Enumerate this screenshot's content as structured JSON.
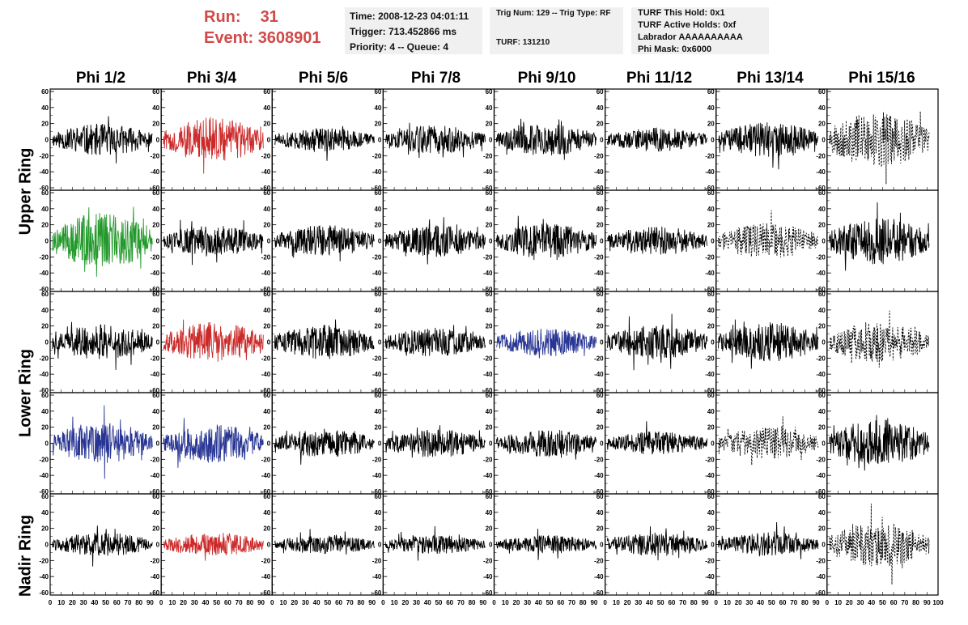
{
  "header": {
    "run_label": "Run:",
    "run_value": "31",
    "event_label": "Event:",
    "event_value": "3608901",
    "time": "Time: 2008-12-23 04:01:11",
    "trigger": "Trigger: 713.452866 ms",
    "priority": "Priority: 4 -- Queue: 4",
    "trig_num": "Trig Num: 129 -- Trig Type: RF",
    "turf": "TURF: 131210",
    "turf_hold": "TURF This Hold: 0x1",
    "turf_active": "TURF Active Holds: 0xf",
    "labrador": "Labrador AAAAAAAAAA",
    "phi_mask": "Phi Mask: 0x6000"
  },
  "columns": [
    "Phi 1/2",
    "Phi 3/4",
    "Phi 5/6",
    "Phi 7/8",
    "Phi 9/10",
    "Phi 11/12",
    "Phi 13/14",
    "Phi 15/16"
  ],
  "ring_labels": [
    "Upper Ring",
    "Lower Ring",
    "Nadir Ring"
  ],
  "colors": {
    "black": "#000000",
    "red": "#cc2a2a",
    "green": "#22992a",
    "blue": "#283593"
  },
  "chart_data": {
    "type": "line",
    "rows": 5,
    "cols": 8,
    "xlim": [
      0,
      100
    ],
    "ylim": [
      -60,
      60
    ],
    "y_ticks": [
      -60,
      -40,
      -20,
      0,
      20,
      40,
      60
    ],
    "x_ticks": [
      0,
      10,
      20,
      30,
      40,
      50,
      60,
      70,
      80,
      90,
      100
    ],
    "panel_styles": [
      [
        "black",
        "red",
        "black",
        "black",
        "black",
        "black",
        "black",
        "dotted"
      ],
      [
        "green",
        "black",
        "black",
        "black",
        "black",
        "black",
        "dotted",
        "black"
      ],
      [
        "black",
        "red",
        "black",
        "black",
        "blue",
        "black",
        "black",
        "dotted"
      ],
      [
        "blue",
        "blue",
        "black",
        "black",
        "black",
        "black",
        "dotted",
        "black"
      ],
      [
        "black",
        "red",
        "black",
        "black",
        "black",
        "black",
        "black",
        "dotted"
      ]
    ],
    "amplitude": [
      [
        20,
        28,
        15,
        18,
        20,
        15,
        22,
        35
      ],
      [
        35,
        20,
        20,
        20,
        22,
        18,
        22,
        30
      ],
      [
        22,
        25,
        22,
        18,
        18,
        22,
        25,
        25
      ],
      [
        25,
        25,
        18,
        18,
        18,
        15,
        20,
        30
      ],
      [
        15,
        15,
        12,
        12,
        12,
        15,
        15,
        28
      ]
    ]
  }
}
